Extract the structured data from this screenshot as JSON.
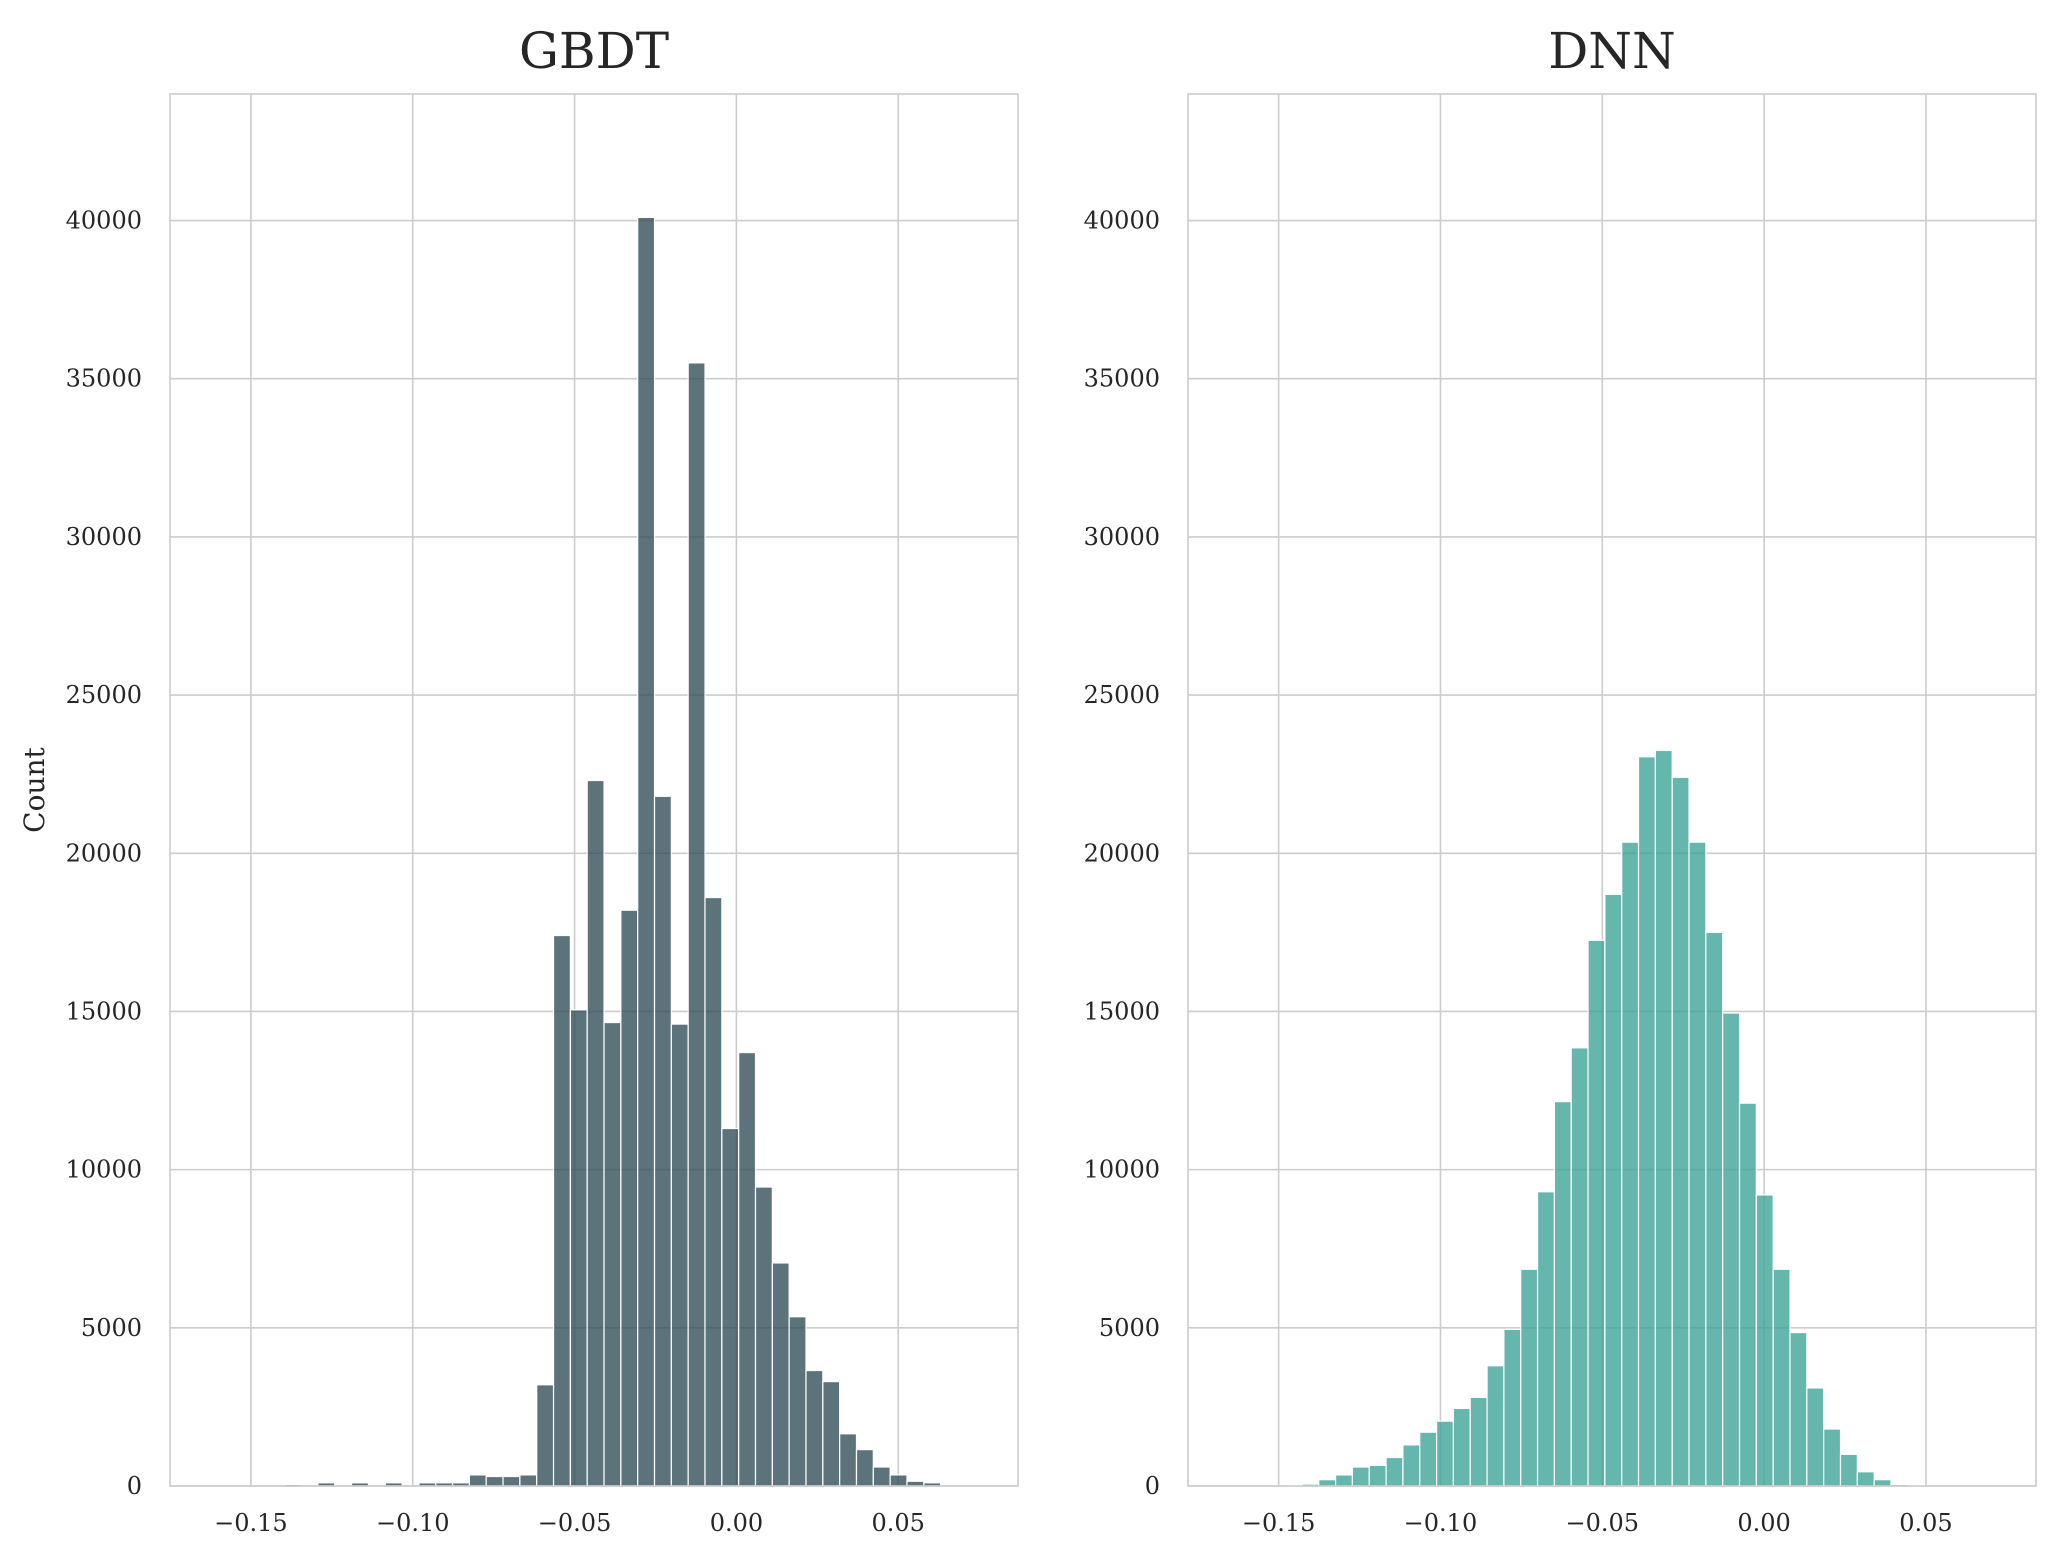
{
  "chart_data": [
    {
      "type": "bar",
      "title": "GBDT",
      "xlabel": "",
      "ylabel": "Count",
      "xlim": [
        -0.175,
        0.087
      ],
      "ylim": [
        0,
        44000
      ],
      "xticks": [
        -0.15,
        -0.1,
        -0.05,
        0.0,
        0.05
      ],
      "xtick_labels": [
        "−0.15",
        "−0.10",
        "−0.05",
        "0.00",
        "0.05"
      ],
      "yticks": [
        0,
        5000,
        10000,
        15000,
        20000,
        25000,
        30000,
        35000,
        40000
      ],
      "ytick_labels": [
        "0",
        "5000",
        "10000",
        "15000",
        "20000",
        "25000",
        "30000",
        "35000",
        "40000"
      ],
      "grid": true,
      "color": "#2f4b57",
      "bin_start": -0.1605,
      "bin_width": 0.0052,
      "values": [
        0,
        0,
        0,
        0,
        50,
        0,
        100,
        0,
        100,
        0,
        100,
        0,
        100,
        100,
        100,
        350,
        300,
        300,
        350,
        3200,
        17400,
        15050,
        22300,
        14650,
        18200,
        40100,
        21800,
        14600,
        35500,
        18600,
        11300,
        13700,
        9450,
        7050,
        5350,
        3650,
        3300,
        1650,
        1150,
        600,
        350,
        150,
        100
      ]
    },
    {
      "type": "bar",
      "title": "DNN",
      "xlabel": "",
      "ylabel": "",
      "xlim": [
        -0.178,
        0.084
      ],
      "ylim": [
        0,
        44000
      ],
      "xticks": [
        -0.15,
        -0.1,
        -0.05,
        0.0,
        0.05
      ],
      "xtick_labels": [
        "−0.15",
        "−0.10",
        "−0.05",
        "0.00",
        "0.05"
      ],
      "yticks": [
        0,
        5000,
        10000,
        15000,
        20000,
        25000,
        30000,
        35000,
        40000
      ],
      "ytick_labels": [
        "0",
        "5000",
        "10000",
        "15000",
        "20000",
        "25000",
        "30000",
        "35000",
        "40000"
      ],
      "grid": true,
      "color": "#3aa196",
      "bin_start": -0.148,
      "bin_width": 0.0052,
      "values": [
        20,
        60,
        200,
        350,
        600,
        650,
        900,
        1300,
        1700,
        2050,
        2450,
        2800,
        3800,
        4950,
        6850,
        9300,
        12150,
        13850,
        17250,
        18700,
        20350,
        23050,
        23250,
        22400,
        20350,
        17500,
        14950,
        12100,
        9200,
        6850,
        4850,
        3100,
        1800,
        1000,
        450,
        200,
        50,
        20
      ]
    }
  ]
}
